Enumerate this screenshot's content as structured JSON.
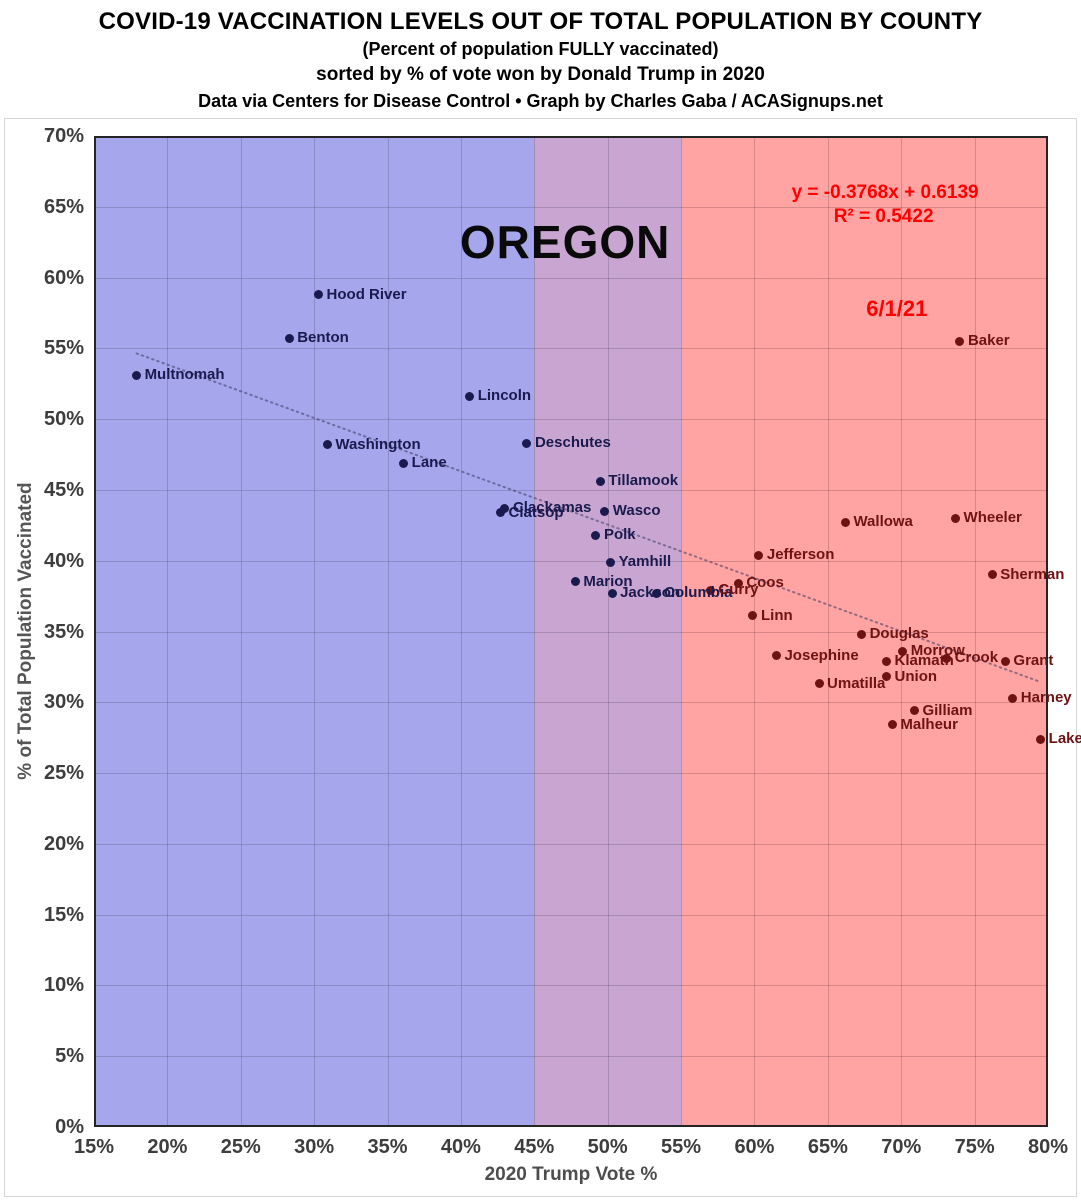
{
  "header": {
    "title": "COVID-19 VACCINATION LEVELS OUT OF TOTAL POPULATION BY COUNTY",
    "subtitle": "(Percent of population FULLY vaccinated)",
    "sort_note": "sorted by % of vote won by Donald Trump in 2020",
    "credit": "Data via Centers for Disease Control • Graph by Charles Gaba / ACASignups.net"
  },
  "chart_data": {
    "type": "scatter",
    "title": "OREGON",
    "xlabel": "2020 Trump Vote %",
    "ylabel": "% of Total Population Vaccinated",
    "xlim": [
      15,
      80
    ],
    "ylim": [
      0,
      70
    ],
    "grid": true,
    "x_tick_labels": [
      "15%",
      "20%",
      "25%",
      "30%",
      "35%",
      "40%",
      "45%",
      "50%",
      "55%",
      "60%",
      "65%",
      "70%",
      "75%",
      "80%"
    ],
    "y_tick_labels": [
      "70%",
      "65%",
      "60%",
      "55%",
      "50%",
      "45%",
      "40%",
      "35%",
      "30%",
      "25%",
      "20%",
      "15%",
      "10%",
      "5%",
      "0%"
    ],
    "bands": [
      {
        "name": "dem-zone",
        "x_from": 15,
        "x_to": 45,
        "color": "#a6a6ed"
      },
      {
        "name": "swing-zone",
        "x_from": 45,
        "x_to": 55,
        "color": "#c9a6d2"
      },
      {
        "name": "rep-zone",
        "x_from": 55,
        "x_to": 80,
        "color": "#ffa3a3"
      }
    ],
    "point_colors": {
      "blue": "#1a1a4e",
      "red": "#6e1212"
    },
    "points": [
      {
        "county": "Multnomah",
        "trump_vote_pct": 17.9,
        "vaccinated_pct": 53.1,
        "side": "blue"
      },
      {
        "county": "Benton",
        "trump_vote_pct": 28.3,
        "vaccinated_pct": 55.7,
        "side": "blue"
      },
      {
        "county": "Hood River",
        "trump_vote_pct": 30.3,
        "vaccinated_pct": 58.8,
        "side": "blue"
      },
      {
        "county": "Washington",
        "trump_vote_pct": 30.9,
        "vaccinated_pct": 48.2,
        "side": "blue"
      },
      {
        "county": "Lane",
        "trump_vote_pct": 36.1,
        "vaccinated_pct": 46.9,
        "side": "blue"
      },
      {
        "county": "Lincoln",
        "trump_vote_pct": 40.6,
        "vaccinated_pct": 51.6,
        "side": "blue"
      },
      {
        "county": "Clatsop",
        "trump_vote_pct": 42.7,
        "vaccinated_pct": 43.4,
        "side": "blue"
      },
      {
        "county": "Clackamas",
        "trump_vote_pct": 43.0,
        "vaccinated_pct": 43.7,
        "side": "blue"
      },
      {
        "county": "Deschutes",
        "trump_vote_pct": 44.5,
        "vaccinated_pct": 48.3,
        "side": "blue"
      },
      {
        "county": "Marion",
        "trump_vote_pct": 47.8,
        "vaccinated_pct": 38.5,
        "side": "blue"
      },
      {
        "county": "Polk",
        "trump_vote_pct": 49.2,
        "vaccinated_pct": 41.8,
        "side": "blue"
      },
      {
        "county": "Tillamook",
        "trump_vote_pct": 49.5,
        "vaccinated_pct": 45.6,
        "side": "blue"
      },
      {
        "county": "Wasco",
        "trump_vote_pct": 49.8,
        "vaccinated_pct": 43.5,
        "side": "blue"
      },
      {
        "county": "Yamhill",
        "trump_vote_pct": 50.2,
        "vaccinated_pct": 39.9,
        "side": "blue"
      },
      {
        "county": "Jackson",
        "trump_vote_pct": 50.3,
        "vaccinated_pct": 37.7,
        "side": "blue"
      },
      {
        "county": "Columbia",
        "trump_vote_pct": 53.3,
        "vaccinated_pct": 37.7,
        "side": "blue"
      },
      {
        "county": "Curry",
        "trump_vote_pct": 57.0,
        "vaccinated_pct": 37.9,
        "side": "red"
      },
      {
        "county": "Coos",
        "trump_vote_pct": 58.9,
        "vaccinated_pct": 38.4,
        "side": "red"
      },
      {
        "county": "Linn",
        "trump_vote_pct": 59.9,
        "vaccinated_pct": 36.1,
        "side": "red"
      },
      {
        "county": "Jefferson",
        "trump_vote_pct": 60.3,
        "vaccinated_pct": 40.4,
        "side": "red"
      },
      {
        "county": "Josephine",
        "trump_vote_pct": 61.5,
        "vaccinated_pct": 33.3,
        "side": "red"
      },
      {
        "county": "Umatilla",
        "trump_vote_pct": 64.4,
        "vaccinated_pct": 31.3,
        "side": "red"
      },
      {
        "county": "Wallowa",
        "trump_vote_pct": 66.2,
        "vaccinated_pct": 42.7,
        "side": "red"
      },
      {
        "county": "Douglas",
        "trump_vote_pct": 67.3,
        "vaccinated_pct": 34.8,
        "side": "red"
      },
      {
        "county": "Klamath",
        "trump_vote_pct": 69.0,
        "vaccinated_pct": 32.9,
        "side": "red"
      },
      {
        "county": "Union",
        "trump_vote_pct": 69.0,
        "vaccinated_pct": 31.8,
        "side": "red"
      },
      {
        "county": "Malheur",
        "trump_vote_pct": 69.4,
        "vaccinated_pct": 28.4,
        "side": "red"
      },
      {
        "county": "Morrow",
        "trump_vote_pct": 70.1,
        "vaccinated_pct": 33.6,
        "side": "red"
      },
      {
        "county": "Gilliam",
        "trump_vote_pct": 70.9,
        "vaccinated_pct": 29.4,
        "side": "red"
      },
      {
        "county": "Crook",
        "trump_vote_pct": 73.1,
        "vaccinated_pct": 33.1,
        "side": "red"
      },
      {
        "county": "Wheeler",
        "trump_vote_pct": 73.7,
        "vaccinated_pct": 43.0,
        "side": "red"
      },
      {
        "county": "Baker",
        "trump_vote_pct": 74.0,
        "vaccinated_pct": 55.5,
        "side": "red"
      },
      {
        "county": "Sherman",
        "trump_vote_pct": 76.2,
        "vaccinated_pct": 39.0,
        "side": "red"
      },
      {
        "county": "Grant",
        "trump_vote_pct": 77.1,
        "vaccinated_pct": 32.9,
        "side": "red"
      },
      {
        "county": "Harney",
        "trump_vote_pct": 77.6,
        "vaccinated_pct": 30.3,
        "side": "red"
      },
      {
        "county": "Lake",
        "trump_vote_pct": 79.5,
        "vaccinated_pct": 27.4,
        "side": "red"
      }
    ],
    "trendline": {
      "equation": "y = -0.3768x + 0.6139",
      "r_squared": "R² = 0.5422",
      "slope": -0.3768,
      "intercept": 0.6139,
      "x_start": 17.9,
      "x_end": 79.5,
      "color": "rgba(60,60,100,0.55)"
    },
    "annotations": [
      {
        "id": "state-label",
        "text": "OREGON",
        "x": 47.1,
        "y": 62.5,
        "color": "#0a0a0a",
        "font_size": 46,
        "font_weight": 800,
        "letter_spacing": "1px"
      },
      {
        "id": "equation",
        "text": "y = -0.3768x + 0.6139",
        "x": 68.9,
        "y": 66.0,
        "color": "#ff0000",
        "font_size": 19,
        "font_weight": 700,
        "letter_spacing": "0"
      },
      {
        "id": "r-squared",
        "text": "R² = 0.5422",
        "x": 68.8,
        "y": 64.3,
        "color": "#ff0000",
        "font_size": 19,
        "font_weight": 700,
        "letter_spacing": "0"
      },
      {
        "id": "date-label",
        "text": "6/1/21",
        "x": 69.7,
        "y": 57.8,
        "color": "#ff0000",
        "font_size": 22,
        "font_weight": 700,
        "letter_spacing": "0"
      }
    ]
  }
}
